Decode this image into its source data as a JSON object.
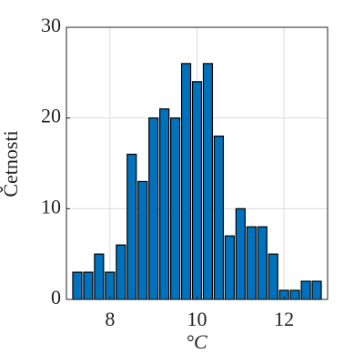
{
  "chart_data": {
    "type": "histogram",
    "bins": [
      7.125,
      7.375,
      7.625,
      7.875,
      8.125,
      8.375,
      8.625,
      8.875,
      9.125,
      9.375,
      9.625,
      9.875,
      10.125,
      10.375,
      10.625,
      10.875,
      11.125,
      11.375,
      11.625,
      11.875,
      12.125,
      12.375,
      12.625,
      12.875
    ],
    "values": [
      3,
      3,
      5,
      3,
      6,
      16,
      13,
      20,
      21,
      20,
      26,
      24,
      26,
      18,
      7,
      10,
      8,
      8,
      5,
      1,
      1,
      2,
      2
    ],
    "color": "#0072bd",
    "xlabel": "°C",
    "ylabel": "Četnosti",
    "xlim": [
      7,
      13
    ],
    "xticks": [
      8,
      10,
      12
    ],
    "ylim": [
      0,
      30
    ],
    "yticks": [
      0,
      10,
      20,
      30
    ],
    "grid": true
  }
}
